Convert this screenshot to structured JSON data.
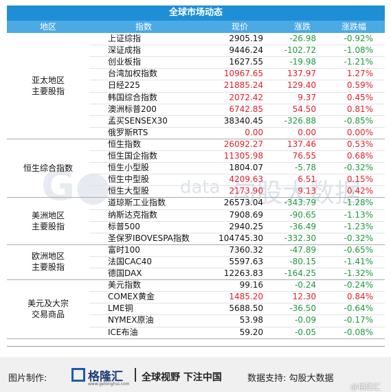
{
  "header": {
    "title": "全球市场动态",
    "columns": [
      "地区",
      "指数",
      "现价",
      "涨跌",
      "涨跌幅"
    ]
  },
  "table": {
    "groups": [
      {
        "region": [
          "亚太地区",
          "主要股指"
        ],
        "rows": [
          [
            "上证综指",
            "2905.19",
            "-26.98",
            "-0.92%"
          ],
          [
            "深证成指",
            "9446.24",
            "-102.72",
            "-1.08%"
          ],
          [
            "创业板指",
            "1627.55",
            "-19.98",
            "-1.21%"
          ],
          [
            "台湾加权指数",
            "10967.65",
            "137.97",
            "1.27%"
          ],
          [
            "日经225",
            "21885.24",
            "129.40",
            "0.59%"
          ],
          [
            "韩国综合指数",
            "2072.42",
            "9.37",
            "0.45%"
          ],
          [
            "澳洲标普200",
            "6742.85",
            "54.50",
            "0.81%"
          ],
          [
            "孟买SENSEX30",
            "38340.45",
            "-326.88",
            "-0.85%"
          ],
          [
            "俄罗斯RTS",
            "0.00",
            "0.00",
            "0.00%"
          ]
        ]
      },
      {
        "region": [
          "恒生综合指数"
        ],
        "rows": [
          [
            "恒生指数",
            "26092.27",
            "137.46",
            "0.53%"
          ],
          [
            "恒生国企指数",
            "11305.98",
            "76.55",
            "0.68%"
          ],
          [
            "恒生小型股",
            "1804.07",
            "-5.78",
            "-0.32%"
          ],
          [
            "恒生中型股",
            "4209.63",
            "6.51",
            "0.15%"
          ],
          [
            "恒生大型股",
            "2173.90",
            "9.13",
            "0.42%"
          ]
        ]
      },
      {
        "region": [
          "美洲地区",
          "主要股指"
        ],
        "rows": [
          [
            "道琼斯工业指数",
            "26573.04",
            "-343.79",
            "-1.28%"
          ],
          [
            "纳斯达克指数",
            "7908.69",
            "-90.65",
            "-1.13%"
          ],
          [
            "标普500",
            "2940.25",
            "-36.49",
            "-1.23%"
          ],
          [
            "圣保罗IBOVESPA指数",
            "104745.30",
            "-332.30",
            "-0.32%"
          ]
        ]
      },
      {
        "region": [
          "欧洲地区",
          "主要股指"
        ],
        "rows": [
          [
            "富时100",
            "7360.32",
            "-47.89",
            "-0.65%"
          ],
          [
            "法国CAC40",
            "5597.63",
            "-80.15",
            "-1.41%"
          ],
          [
            "德国DAX",
            "12263.83",
            "-164.25",
            "-1.32%"
          ]
        ]
      },
      {
        "region": [
          "美元及大宗",
          "交易商品"
        ],
        "rows": [
          [
            "美元指数",
            "99.16",
            "-0.24",
            "-0.24%"
          ],
          [
            "COMEX黄金",
            "1485.20",
            "12.30",
            "0.84%"
          ],
          [
            "LME铜",
            "5688.50",
            "-36.50",
            "-0.64%"
          ],
          [
            "NYMEX原油",
            "53.98",
            "-0.09",
            "-0.17%"
          ],
          [
            "ICE布油",
            "59.20",
            "-0.05",
            "-0.08%"
          ]
        ]
      }
    ]
  },
  "watermark": {
    "brand": "data",
    "name": "勾股大数据"
  },
  "footer": {
    "made_by": "图片制作:",
    "logo": "格隆汇",
    "logo_url": "www.gelonghui.com",
    "slogan": "全球视野 下注中国",
    "data_by": "数据支持: 勾股大数据",
    "handle": "@格隆汇"
  }
}
